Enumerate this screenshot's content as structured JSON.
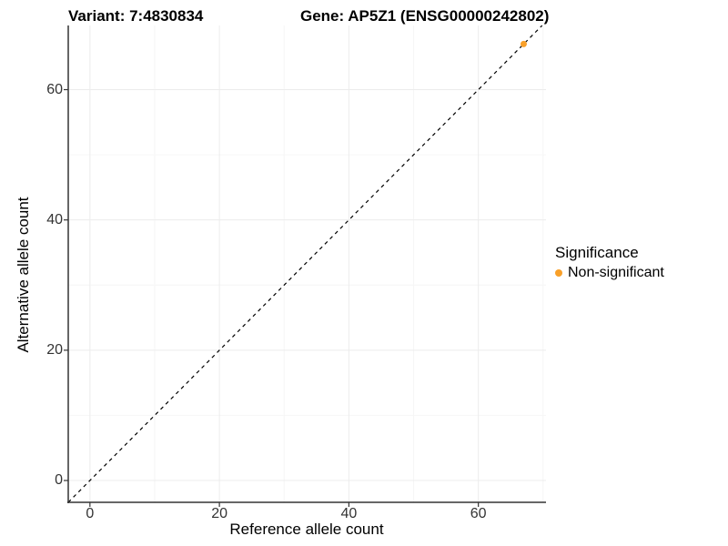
{
  "title": {
    "left": "Variant: 7:4830834",
    "right": "Gene: AP5Z1 (ENSG00000242802)"
  },
  "axes": {
    "x": {
      "label": "Reference allele count"
    },
    "y": {
      "label": "Alternative allele count"
    }
  },
  "legend": {
    "title": "Significance",
    "items": [
      {
        "label": "Non-significant",
        "color": "#F9A029"
      }
    ]
  },
  "colors": {
    "background": "#FFFFFF",
    "grid_major": "#ECECEC",
    "grid_minor": "#F6F6F6",
    "axis_line": "#333333",
    "tick_mark": "#333333",
    "tick_label": "#333333",
    "text": "#000000",
    "reference_line": "#000000",
    "point": "#F9A029"
  },
  "chart_data": {
    "type": "scatter",
    "title": "Variant: 7:4830834",
    "subtitle": "Gene: AP5Z1 (ENSG00000242802)",
    "xlabel": "Reference allele count",
    "ylabel": "Alternative allele count",
    "xlim": [
      -3.35,
      70.45
    ],
    "ylim": [
      -3.35,
      69.85
    ],
    "x_major_ticks": [
      0,
      20,
      40,
      60
    ],
    "x_minor_ticks": [
      10,
      30,
      50,
      70
    ],
    "y_major_ticks": [
      0,
      20,
      40,
      60
    ],
    "y_minor_ticks": [
      10,
      30,
      50,
      70
    ],
    "grid": "major+minor",
    "legend_position": "right",
    "series": [
      {
        "name": "Non-significant",
        "color": "#F9A029",
        "points": [
          {
            "x": 67,
            "y": 67
          }
        ]
      }
    ],
    "reference_line": {
      "slope": 1,
      "intercept": 0,
      "style": "dashed",
      "color": "#000000"
    }
  }
}
